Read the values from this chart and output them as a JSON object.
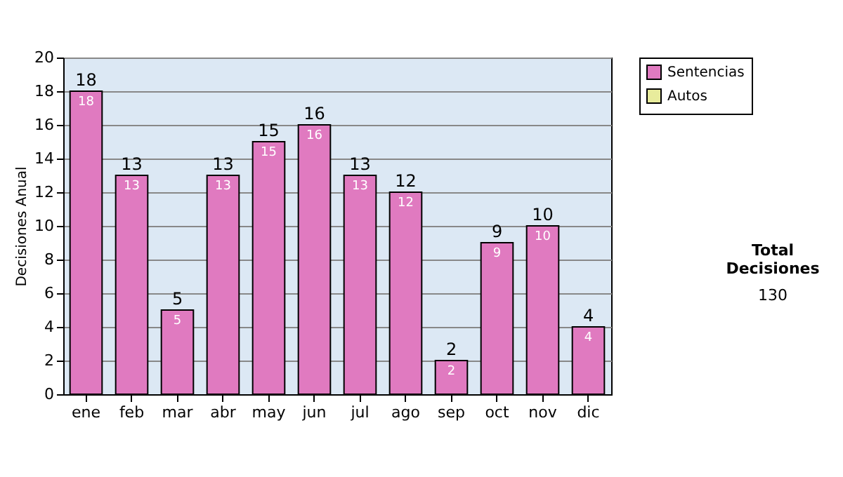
{
  "chart_data": {
    "type": "bar",
    "ylabel": "Decisiones Anual",
    "categories": [
      "ene",
      "feb",
      "mar",
      "abr",
      "may",
      "jun",
      "jul",
      "ago",
      "sep",
      "oct",
      "nov",
      "dic"
    ],
    "series": [
      {
        "name": "Sentencias",
        "color": "#e07ac0",
        "values": [
          18,
          13,
          5,
          13,
          15,
          16,
          13,
          12,
          2,
          9,
          10,
          4
        ]
      },
      {
        "name": "Autos",
        "color": "#e8ec9c",
        "values": [
          null,
          null,
          null,
          null,
          null,
          null,
          null,
          null,
          null,
          null,
          null,
          null
        ]
      }
    ],
    "totals": [
      "18",
      "13",
      "5",
      "13",
      "15",
      "16",
      "13",
      "12",
      "2",
      "9",
      "10",
      "4"
    ],
    "data_labels": true,
    "ylim": [
      0,
      20
    ],
    "yticks": [
      0,
      2,
      4,
      6,
      8,
      10,
      12,
      14,
      16,
      18,
      20
    ],
    "grid": "y",
    "legend": "right",
    "annotations": [
      "Total Decisiones",
      "130"
    ]
  }
}
